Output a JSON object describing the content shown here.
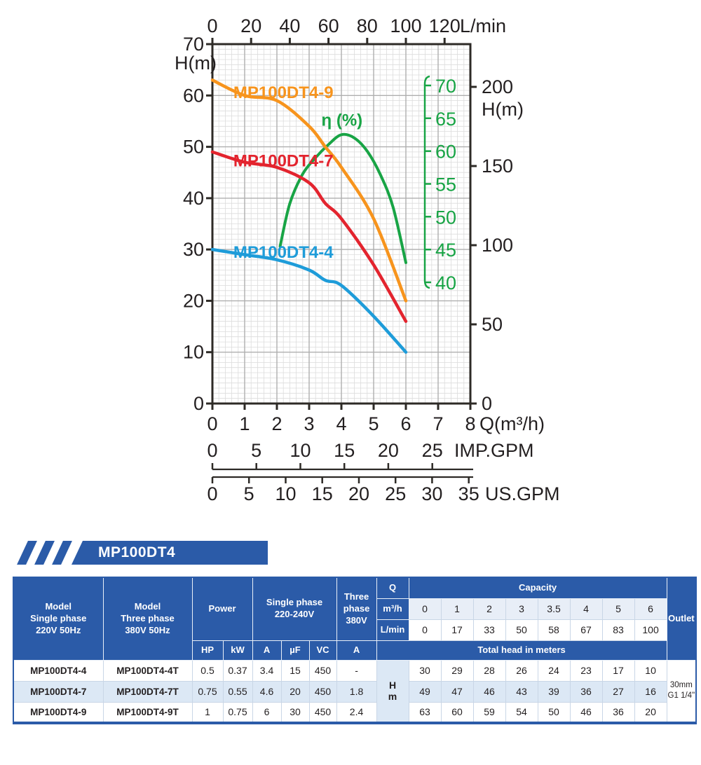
{
  "colors": {
    "header_blue": "#2B5BA8",
    "row_light_blue": "#DCE8F5",
    "value_row_light": "#E8EEF7",
    "axis_dark": "#2D2A26",
    "text_dark": "#231F20",
    "grid_minor": "#DCDCDC",
    "grid_major": "#AFAFAF",
    "curve_orange": "#F7941D",
    "curve_red": "#E3242E",
    "curve_blue": "#1E9CD9",
    "curve_green": "#18A445"
  },
  "chart_data": {
    "type": "line",
    "title": "",
    "xlabel": "Q(m³/h)",
    "ylabel": "H(m)",
    "xlim": [
      0,
      8
    ],
    "ylim": [
      0,
      70
    ],
    "grid": true,
    "x": [
      0,
      1,
      2,
      3,
      3.5,
      4,
      5,
      6
    ],
    "series": [
      {
        "name": "MP100DT4-9",
        "color": "#F7941D",
        "values": [
          63,
          60,
          59,
          54,
          50,
          46,
          36,
          20
        ],
        "label_pos": [
          0.65,
          60.6
        ]
      },
      {
        "name": "MP100DT4-7",
        "color": "#E3242E",
        "values": [
          49,
          47,
          46,
          43,
          39,
          36,
          27,
          16
        ],
        "label_pos": [
          0.65,
          47.3
        ]
      },
      {
        "name": "MP100DT4-4",
        "color": "#1E9CD9",
        "values": [
          30,
          29,
          28,
          26,
          24,
          23,
          17,
          10
        ],
        "label_pos": [
          0.65,
          29.5
        ]
      }
    ],
    "efficiency": {
      "name": "η (%)",
      "color": "#18A445",
      "range": [
        40,
        70
      ],
      "ticks": [
        40,
        45,
        50,
        55,
        60,
        65,
        70
      ],
      "points": [
        [
          2.1,
          45.5
        ],
        [
          2.4,
          52
        ],
        [
          2.8,
          56.5
        ],
        [
          3.2,
          59
        ],
        [
          3.6,
          61
        ],
        [
          4.0,
          62.5
        ],
        [
          4.4,
          62
        ],
        [
          4.8,
          60
        ],
        [
          5.2,
          56.5
        ],
        [
          5.6,
          51.5
        ],
        [
          6.0,
          43
        ]
      ],
      "label_pos": [
        3.38,
        55.2
      ]
    },
    "axes": {
      "top": {
        "unit": "L/min",
        "ticks": [
          0,
          20,
          40,
          60,
          80,
          100,
          120
        ],
        "max": 133.33
      },
      "left": {
        "unit": "H(m)",
        "ticks": [
          0,
          10,
          20,
          30,
          40,
          50,
          60,
          70
        ]
      },
      "right": {
        "unit": "H(m)",
        "ticks": [
          0,
          50,
          100,
          150,
          200
        ],
        "max": 229.7
      },
      "bottom": {
        "unit": "Q(m³/h)",
        "ticks": [
          0,
          1,
          2,
          3,
          4,
          5,
          6,
          7,
          8
        ]
      },
      "imp_gpm": {
        "unit": "IMP.GPM",
        "ticks": [
          0,
          5,
          10,
          15,
          20,
          25
        ],
        "per_m3h": 3.6662
      },
      "us_gpm": {
        "unit": "US.GPM",
        "ticks": [
          0,
          5,
          10,
          15,
          20,
          25,
          30,
          35
        ],
        "per_m3h": 4.4029
      }
    }
  },
  "section": {
    "title": "MP100DT4"
  },
  "table": {
    "header": {
      "model_single": "Model\nSingle phase\n220V 50Hz",
      "model_three": "Model\nThree phase\n380V 50Hz",
      "power": "Power",
      "single_phase": "Single phase\n220-240V",
      "three_phase": "Three\nphase\n380V",
      "q": "Q",
      "capacity": "Capacity",
      "outlet": "Outlet",
      "m3h": "m³/h",
      "lmin": "L/min",
      "sub": [
        "HP",
        "kW",
        "A",
        "µF",
        "VC",
        "A"
      ],
      "total_head": "Total head in meters",
      "hm": "H\nm"
    },
    "capacity_m3h": [
      "0",
      "1",
      "2",
      "3",
      "3.5",
      "4",
      "5",
      "6"
    ],
    "capacity_lmin": [
      "0",
      "17",
      "33",
      "50",
      "58",
      "67",
      "83",
      "100"
    ],
    "rows": [
      {
        "model1": "MP100DT4-4",
        "model2": "MP100DT4-4T",
        "hp": "0.5",
        "kw": "0.37",
        "a": "3.4",
        "uf": "15",
        "vc": "450",
        "a3": "-",
        "heads": [
          "30",
          "29",
          "28",
          "26",
          "24",
          "23",
          "17",
          "10"
        ]
      },
      {
        "model1": "MP100DT4-7",
        "model2": "MP100DT4-7T",
        "hp": "0.75",
        "kw": "0.55",
        "a": "4.6",
        "uf": "20",
        "vc": "450",
        "a3": "1.8",
        "heads": [
          "49",
          "47",
          "46",
          "43",
          "39",
          "36",
          "27",
          "16"
        ]
      },
      {
        "model1": "MP100DT4-9",
        "model2": "MP100DT4-9T",
        "hp": "1",
        "kw": "0.75",
        "a": "6",
        "uf": "30",
        "vc": "450",
        "a3": "2.4",
        "heads": [
          "63",
          "60",
          "59",
          "54",
          "50",
          "46",
          "36",
          "20"
        ]
      }
    ],
    "outlet_value": "30mm\nG1 1/4\""
  }
}
